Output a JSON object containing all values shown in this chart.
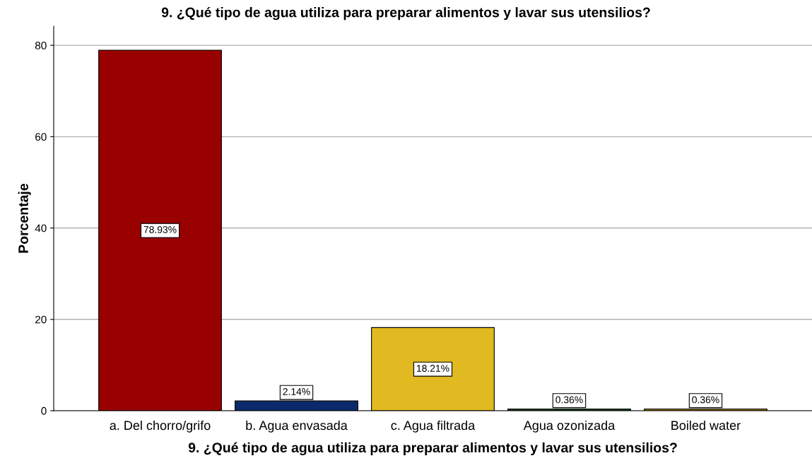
{
  "chart_data": {
    "type": "bar",
    "title": "9. ¿Qué tipo de agua utiliza para preparar alimentos y lavar sus utensilios?",
    "xlabel": "9. ¿Qué tipo de agua utiliza para preparar alimentos y lavar sus utensilios?",
    "ylabel": "Porcentaje",
    "categories": [
      "a. Del chorro/grifo",
      "b. Agua envasada",
      "c. Agua filtrada",
      "Agua ozonizada",
      "Boiled water"
    ],
    "values": [
      78.93,
      2.14,
      18.21,
      0.36,
      0.36
    ],
    "colors": [
      "#990000",
      "#0c2a6b",
      "#e0ba20",
      "#1e5b1e",
      "#c49a14"
    ],
    "value_labels": [
      "78.93%",
      "2.14%",
      "18.21%",
      "0.36%",
      "0.36%"
    ],
    "ylim": [
      0,
      84.2
    ],
    "yticks": [
      0,
      20,
      40,
      60,
      80
    ],
    "grid": "y"
  }
}
